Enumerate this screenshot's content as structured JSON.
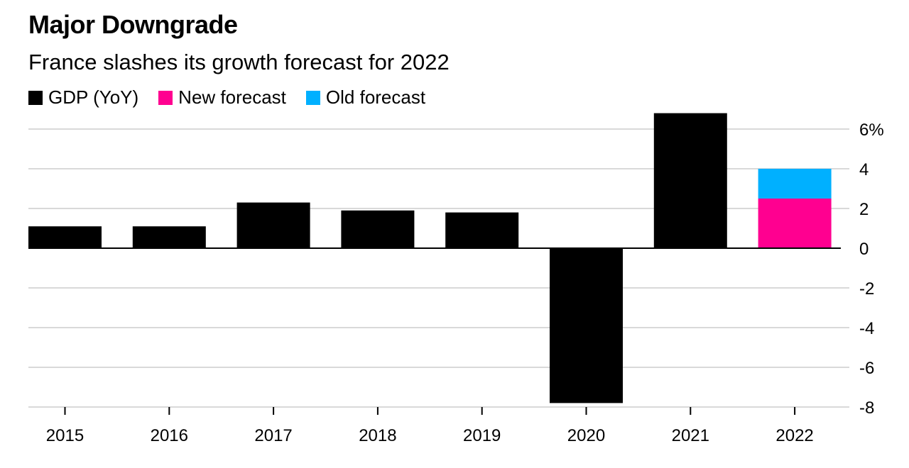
{
  "chart_data": {
    "type": "bar",
    "title": "Major Downgrade",
    "subtitle": "France slashes its growth forecast for 2022",
    "categories": [
      "2015",
      "2016",
      "2017",
      "2018",
      "2019",
      "2020",
      "2021",
      "2022"
    ],
    "series": [
      {
        "name": "GDP (YoY)",
        "color": "#000000",
        "values": [
          1.1,
          1.1,
          2.3,
          1.9,
          1.8,
          -7.8,
          6.8,
          null
        ]
      },
      {
        "name": "New forecast",
        "color": "#ff0090",
        "values": [
          null,
          null,
          null,
          null,
          null,
          null,
          null,
          2.5
        ]
      },
      {
        "name": "Old forecast",
        "color": "#00b0ff",
        "values": [
          null,
          null,
          null,
          null,
          null,
          null,
          null,
          4.0
        ]
      }
    ],
    "ylim": [
      -8,
      6
    ],
    "yticks": [
      -8,
      -6,
      -4,
      -2,
      0,
      2,
      4,
      6
    ],
    "ytick_labels": [
      "-8",
      "-6",
      "-4",
      "-2",
      "0",
      "2",
      "4",
      "6%"
    ],
    "y_axis_position": "right",
    "grid": true,
    "legend_position": "top-left",
    "xlabel": "",
    "ylabel": ""
  }
}
